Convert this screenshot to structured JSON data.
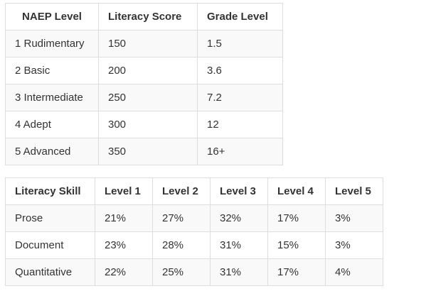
{
  "naep_table": {
    "headers": [
      "NAEP Level",
      "Literacy Score",
      "Grade Level"
    ],
    "rows": [
      [
        "1 Rudimentary",
        "150",
        "1.5"
      ],
      [
        "2 Basic",
        "200",
        "3.6"
      ],
      [
        "3 Intermediate",
        "250",
        "7.2"
      ],
      [
        "4 Adept",
        "300",
        "12"
      ],
      [
        "5 Advanced",
        "350",
        "16+"
      ]
    ]
  },
  "skill_table": {
    "headers": [
      "Literacy Skill",
      "Level 1",
      "Level 2",
      "Level 3",
      "Level 4",
      "Level 5"
    ],
    "rows": [
      [
        "Prose",
        "21%",
        "27%",
        "32%",
        "17%",
        "3%"
      ],
      [
        "Document",
        "23%",
        "28%",
        "31%",
        "15%",
        "3%"
      ],
      [
        "Quantitative",
        "22%",
        "25%",
        "31%",
        "17%",
        "4%"
      ]
    ]
  }
}
